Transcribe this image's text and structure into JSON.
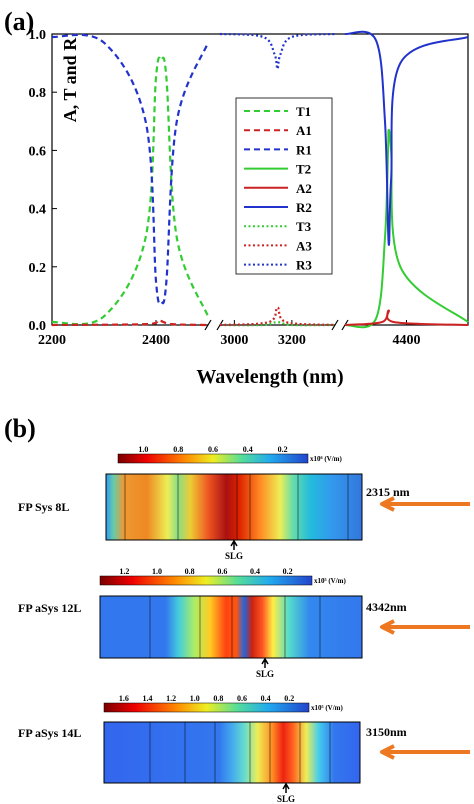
{
  "panel_a": {
    "label": "(a)",
    "xlabel": "Wavelength (nm)",
    "ylabel": "A, T and R",
    "x_ticks": [
      "2200",
      "2400",
      "3000",
      "3200",
      "4400"
    ],
    "y_ticks": [
      "0.0",
      "0.2",
      "0.4",
      "0.6",
      "0.8",
      "1.0"
    ],
    "legend": [
      {
        "label": "T1",
        "color": "#33cc33",
        "style": "dashed"
      },
      {
        "label": "A1",
        "color": "#cc2222",
        "style": "dashed"
      },
      {
        "label": "R1",
        "color": "#2233cc",
        "style": "dashed"
      },
      {
        "label": "T2",
        "color": "#33cc33",
        "style": "solid"
      },
      {
        "label": "A2",
        "color": "#cc2222",
        "style": "solid"
      },
      {
        "label": "R2",
        "color": "#2233cc",
        "style": "solid"
      },
      {
        "label": "T3",
        "color": "#33cc33",
        "style": "dotted"
      },
      {
        "label": "A3",
        "color": "#cc2222",
        "style": "dotted"
      },
      {
        "label": "R3",
        "color": "#2233cc",
        "style": "dotted"
      }
    ]
  },
  "chart_data": {
    "type": "line",
    "xlabel": "Wavelength (nm)",
    "ylabel": "A, T and R",
    "ylim": [
      0,
      1.0
    ],
    "broken_x_axis": [
      [
        2200,
        2500
      ],
      [
        2950,
        3350
      ],
      [
        4200,
        4600
      ]
    ],
    "series": [
      {
        "name": "T1",
        "style": "dashed",
        "color": "#33cc33",
        "x": [
          2200,
          2300,
          2380,
          2400,
          2410,
          2420,
          2440,
          2500
        ],
        "y": [
          0.01,
          0.03,
          0.3,
          0.85,
          0.91,
          0.85,
          0.3,
          0.03
        ]
      },
      {
        "name": "A1",
        "style": "dashed",
        "color": "#cc2222",
        "x": [
          2200,
          2380,
          2405,
          2430,
          2500
        ],
        "y": [
          0.0,
          0.003,
          0.015,
          0.003,
          0.0
        ]
      },
      {
        "name": "R1",
        "style": "dashed",
        "color": "#2233cc",
        "x": [
          2200,
          2300,
          2380,
          2400,
          2410,
          2420,
          2440,
          2500
        ],
        "y": [
          0.99,
          0.97,
          0.7,
          0.15,
          0.08,
          0.15,
          0.7,
          0.97
        ]
      },
      {
        "name": "T2",
        "style": "solid",
        "color": "#33cc33",
        "x": [
          4200,
          4300,
          4330,
          4340,
          4342,
          4350,
          4380,
          4600
        ],
        "y": [
          0.0,
          0.02,
          0.3,
          0.6,
          0.67,
          0.6,
          0.2,
          0.01
        ]
      },
      {
        "name": "A2",
        "style": "solid",
        "color": "#cc2222",
        "x": [
          4200,
          4320,
          4342,
          4360,
          4600
        ],
        "y": [
          0.0,
          0.01,
          0.05,
          0.01,
          0.0
        ]
      },
      {
        "name": "R2",
        "style": "solid",
        "color": "#2233cc",
        "x": [
          4200,
          4300,
          4330,
          4342,
          4350,
          4380,
          4600
        ],
        "y": [
          1.0,
          0.98,
          0.7,
          0.28,
          0.5,
          0.9,
          0.99
        ]
      },
      {
        "name": "T3",
        "style": "dotted",
        "color": "#33cc33",
        "x": [
          2950,
          3100,
          3150,
          3200,
          3350
        ],
        "y": [
          0.0,
          0.0,
          0.01,
          0.0,
          0.0
        ]
      },
      {
        "name": "A3",
        "style": "dotted",
        "color": "#cc2222",
        "x": [
          2950,
          3120,
          3150,
          3180,
          3350
        ],
        "y": [
          0.0,
          0.01,
          0.06,
          0.01,
          0.0
        ]
      },
      {
        "name": "R3",
        "style": "dotted",
        "color": "#2233cc",
        "x": [
          2950,
          3100,
          3140,
          3150,
          3160,
          3200,
          3350
        ],
        "y": [
          1.0,
          0.99,
          0.93,
          0.88,
          0.93,
          0.99,
          1.0
        ]
      }
    ]
  },
  "panel_b": {
    "label": "(b)",
    "slg_label": "SLG",
    "colors": {
      "arrow": "#ee7722",
      "frame": "#000000"
    },
    "maps": [
      {
        "name": "FP Sys 8L",
        "wavelength": "2315 nm",
        "scale_ticks": [
          "1.0",
          "0.8",
          "0.6",
          "0.4",
          "0.2"
        ],
        "unit": "x10⁶ (V/m)"
      },
      {
        "name": "FP aSys 12L",
        "wavelength": "4342nm",
        "scale_ticks": [
          "1.2",
          "1.0",
          "0.8",
          "0.6",
          "0.4",
          "0.2"
        ],
        "unit": "x10⁵ (V/m)"
      },
      {
        "name": "FP aSys 14L",
        "wavelength": "3150nm",
        "scale_ticks": [
          "1.6",
          "1.4",
          "1.2",
          "1.0",
          "0.8",
          "0.6",
          "0.4",
          "0.2"
        ],
        "unit": "x10⁵ (V/m)"
      }
    ]
  }
}
